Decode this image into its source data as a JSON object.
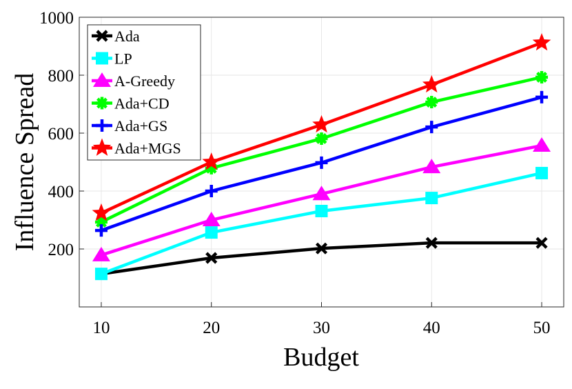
{
  "chart_data": {
    "type": "line",
    "title": "",
    "xlabel": "Budget",
    "ylabel": "Influence Spread",
    "x": [
      10,
      20,
      30,
      40,
      50
    ],
    "xlim": [
      8,
      52
    ],
    "ylim": [
      0,
      1000
    ],
    "xticks": [
      10,
      20,
      30,
      40,
      50
    ],
    "yticks": [
      200,
      400,
      600,
      800,
      1000
    ],
    "grid": true,
    "legend_position": "top-left",
    "series": [
      {
        "name": "Ada",
        "color": "#000000",
        "marker": "x",
        "values": [
          114,
          169,
          202,
          221,
          221
        ]
      },
      {
        "name": "LP",
        "color": "#00ffff",
        "marker": "square",
        "values": [
          114,
          257,
          331,
          376,
          462
        ]
      },
      {
        "name": "A-Greedy",
        "color": "#ff00ff",
        "marker": "triangle",
        "values": [
          179,
          300,
          390,
          483,
          557
        ]
      },
      {
        "name": "Ada+CD",
        "color": "#00ff00",
        "marker": "asterisk",
        "values": [
          293,
          479,
          581,
          707,
          793
        ]
      },
      {
        "name": "Ada+GS",
        "color": "#0000ff",
        "marker": "plus",
        "values": [
          264,
          400,
          498,
          621,
          724
        ]
      },
      {
        "name": "Ada+MGS",
        "color": "#ff0000",
        "marker": "star",
        "values": [
          324,
          500,
          629,
          767,
          912
        ]
      }
    ]
  }
}
